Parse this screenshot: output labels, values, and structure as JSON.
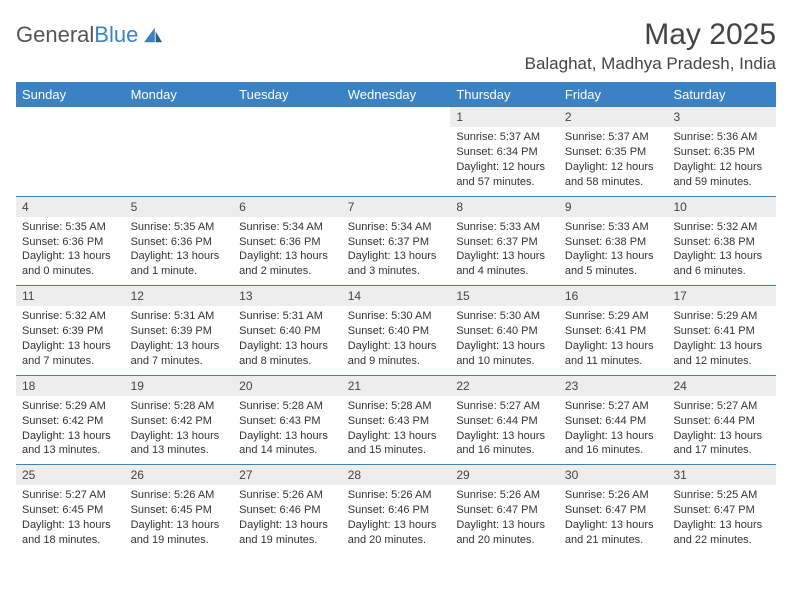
{
  "logo": {
    "text_gray": "General",
    "text_blue": "Blue"
  },
  "title": "May 2025",
  "location": "Balaghat, Madhya Pradesh, India",
  "colors": {
    "header_bg": "#3b82c4",
    "daynum_bg": "#ededed",
    "border": "#3b82c4",
    "text": "#333333",
    "title_text": "#444444"
  },
  "weekdays": [
    "Sunday",
    "Monday",
    "Tuesday",
    "Wednesday",
    "Thursday",
    "Friday",
    "Saturday"
  ],
  "weeks": [
    [
      {
        "n": "",
        "sr": "",
        "ss": "",
        "dl": ""
      },
      {
        "n": "",
        "sr": "",
        "ss": "",
        "dl": ""
      },
      {
        "n": "",
        "sr": "",
        "ss": "",
        "dl": ""
      },
      {
        "n": "",
        "sr": "",
        "ss": "",
        "dl": ""
      },
      {
        "n": "1",
        "sr": "Sunrise: 5:37 AM",
        "ss": "Sunset: 6:34 PM",
        "dl": "Daylight: 12 hours and 57 minutes."
      },
      {
        "n": "2",
        "sr": "Sunrise: 5:37 AM",
        "ss": "Sunset: 6:35 PM",
        "dl": "Daylight: 12 hours and 58 minutes."
      },
      {
        "n": "3",
        "sr": "Sunrise: 5:36 AM",
        "ss": "Sunset: 6:35 PM",
        "dl": "Daylight: 12 hours and 59 minutes."
      }
    ],
    [
      {
        "n": "4",
        "sr": "Sunrise: 5:35 AM",
        "ss": "Sunset: 6:36 PM",
        "dl": "Daylight: 13 hours and 0 minutes."
      },
      {
        "n": "5",
        "sr": "Sunrise: 5:35 AM",
        "ss": "Sunset: 6:36 PM",
        "dl": "Daylight: 13 hours and 1 minute."
      },
      {
        "n": "6",
        "sr": "Sunrise: 5:34 AM",
        "ss": "Sunset: 6:36 PM",
        "dl": "Daylight: 13 hours and 2 minutes."
      },
      {
        "n": "7",
        "sr": "Sunrise: 5:34 AM",
        "ss": "Sunset: 6:37 PM",
        "dl": "Daylight: 13 hours and 3 minutes."
      },
      {
        "n": "8",
        "sr": "Sunrise: 5:33 AM",
        "ss": "Sunset: 6:37 PM",
        "dl": "Daylight: 13 hours and 4 minutes."
      },
      {
        "n": "9",
        "sr": "Sunrise: 5:33 AM",
        "ss": "Sunset: 6:38 PM",
        "dl": "Daylight: 13 hours and 5 minutes."
      },
      {
        "n": "10",
        "sr": "Sunrise: 5:32 AM",
        "ss": "Sunset: 6:38 PM",
        "dl": "Daylight: 13 hours and 6 minutes."
      }
    ],
    [
      {
        "n": "11",
        "sr": "Sunrise: 5:32 AM",
        "ss": "Sunset: 6:39 PM",
        "dl": "Daylight: 13 hours and 7 minutes."
      },
      {
        "n": "12",
        "sr": "Sunrise: 5:31 AM",
        "ss": "Sunset: 6:39 PM",
        "dl": "Daylight: 13 hours and 7 minutes."
      },
      {
        "n": "13",
        "sr": "Sunrise: 5:31 AM",
        "ss": "Sunset: 6:40 PM",
        "dl": "Daylight: 13 hours and 8 minutes."
      },
      {
        "n": "14",
        "sr": "Sunrise: 5:30 AM",
        "ss": "Sunset: 6:40 PM",
        "dl": "Daylight: 13 hours and 9 minutes."
      },
      {
        "n": "15",
        "sr": "Sunrise: 5:30 AM",
        "ss": "Sunset: 6:40 PM",
        "dl": "Daylight: 13 hours and 10 minutes."
      },
      {
        "n": "16",
        "sr": "Sunrise: 5:29 AM",
        "ss": "Sunset: 6:41 PM",
        "dl": "Daylight: 13 hours and 11 minutes."
      },
      {
        "n": "17",
        "sr": "Sunrise: 5:29 AM",
        "ss": "Sunset: 6:41 PM",
        "dl": "Daylight: 13 hours and 12 minutes."
      }
    ],
    [
      {
        "n": "18",
        "sr": "Sunrise: 5:29 AM",
        "ss": "Sunset: 6:42 PM",
        "dl": "Daylight: 13 hours and 13 minutes."
      },
      {
        "n": "19",
        "sr": "Sunrise: 5:28 AM",
        "ss": "Sunset: 6:42 PM",
        "dl": "Daylight: 13 hours and 13 minutes."
      },
      {
        "n": "20",
        "sr": "Sunrise: 5:28 AM",
        "ss": "Sunset: 6:43 PM",
        "dl": "Daylight: 13 hours and 14 minutes."
      },
      {
        "n": "21",
        "sr": "Sunrise: 5:28 AM",
        "ss": "Sunset: 6:43 PM",
        "dl": "Daylight: 13 hours and 15 minutes."
      },
      {
        "n": "22",
        "sr": "Sunrise: 5:27 AM",
        "ss": "Sunset: 6:44 PM",
        "dl": "Daylight: 13 hours and 16 minutes."
      },
      {
        "n": "23",
        "sr": "Sunrise: 5:27 AM",
        "ss": "Sunset: 6:44 PM",
        "dl": "Daylight: 13 hours and 16 minutes."
      },
      {
        "n": "24",
        "sr": "Sunrise: 5:27 AM",
        "ss": "Sunset: 6:44 PM",
        "dl": "Daylight: 13 hours and 17 minutes."
      }
    ],
    [
      {
        "n": "25",
        "sr": "Sunrise: 5:27 AM",
        "ss": "Sunset: 6:45 PM",
        "dl": "Daylight: 13 hours and 18 minutes."
      },
      {
        "n": "26",
        "sr": "Sunrise: 5:26 AM",
        "ss": "Sunset: 6:45 PM",
        "dl": "Daylight: 13 hours and 19 minutes."
      },
      {
        "n": "27",
        "sr": "Sunrise: 5:26 AM",
        "ss": "Sunset: 6:46 PM",
        "dl": "Daylight: 13 hours and 19 minutes."
      },
      {
        "n": "28",
        "sr": "Sunrise: 5:26 AM",
        "ss": "Sunset: 6:46 PM",
        "dl": "Daylight: 13 hours and 20 minutes."
      },
      {
        "n": "29",
        "sr": "Sunrise: 5:26 AM",
        "ss": "Sunset: 6:47 PM",
        "dl": "Daylight: 13 hours and 20 minutes."
      },
      {
        "n": "30",
        "sr": "Sunrise: 5:26 AM",
        "ss": "Sunset: 6:47 PM",
        "dl": "Daylight: 13 hours and 21 minutes."
      },
      {
        "n": "31",
        "sr": "Sunrise: 5:25 AM",
        "ss": "Sunset: 6:47 PM",
        "dl": "Daylight: 13 hours and 22 minutes."
      }
    ]
  ]
}
